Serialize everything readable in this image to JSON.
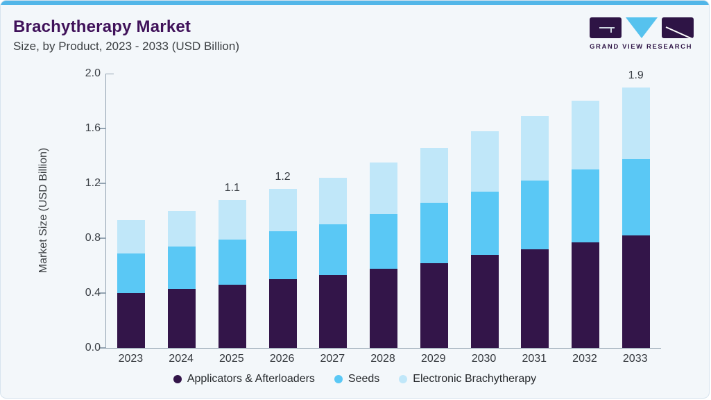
{
  "header": {
    "title": "Brachytherapy Market",
    "subtitle": "Size, by Product, 2023 - 2033 (USD Billion)"
  },
  "logo": {
    "text": "GRAND VIEW RESEARCH",
    "purple": "#2e1445",
    "blue": "#56c2ee"
  },
  "colors": {
    "card_background": "#f3f7fa",
    "accent_bar": "#52b6e8",
    "card_border": "#d7e4ee",
    "axis": "#93a3b1",
    "title": "#40125a",
    "text": "#3c4043"
  },
  "chart_data": {
    "type": "bar",
    "stacked": true,
    "title": "Brachytherapy Market",
    "subtitle": "Size, by Product, 2023 - 2033 (USD Billion)",
    "ylabel": "Market Size (USD Billion)",
    "xlabel": "",
    "ylim": [
      0.0,
      2.0
    ],
    "yticks": [
      "0.0",
      "0.4",
      "0.8",
      "1.2",
      "1.6",
      "2.0"
    ],
    "grid": false,
    "legend_position": "bottom",
    "categories": [
      "2023",
      "2024",
      "2025",
      "2026",
      "2027",
      "2028",
      "2029",
      "2030",
      "2031",
      "2032",
      "2033"
    ],
    "series": [
      {
        "name": "Applicators & Afterloaders",
        "color": "#331549",
        "values": [
          0.4,
          0.43,
          0.46,
          0.5,
          0.53,
          0.58,
          0.62,
          0.68,
          0.72,
          0.77,
          0.82
        ]
      },
      {
        "name": "Seeds",
        "color": "#5ac8f5",
        "values": [
          0.29,
          0.31,
          0.33,
          0.35,
          0.37,
          0.4,
          0.44,
          0.46,
          0.5,
          0.53,
          0.56
        ]
      },
      {
        "name": "Electronic Brachytherapy",
        "color": "#c0e7f9",
        "values": [
          0.24,
          0.26,
          0.29,
          0.31,
          0.34,
          0.37,
          0.4,
          0.44,
          0.47,
          0.5,
          0.52
        ]
      }
    ],
    "totals": [
      0.93,
      1.0,
      1.08,
      1.16,
      1.24,
      1.35,
      1.46,
      1.58,
      1.69,
      1.8,
      1.9
    ],
    "bar_value_labels": {
      "2025": "1.1",
      "2026": "1.2",
      "2033": "1.9"
    }
  }
}
